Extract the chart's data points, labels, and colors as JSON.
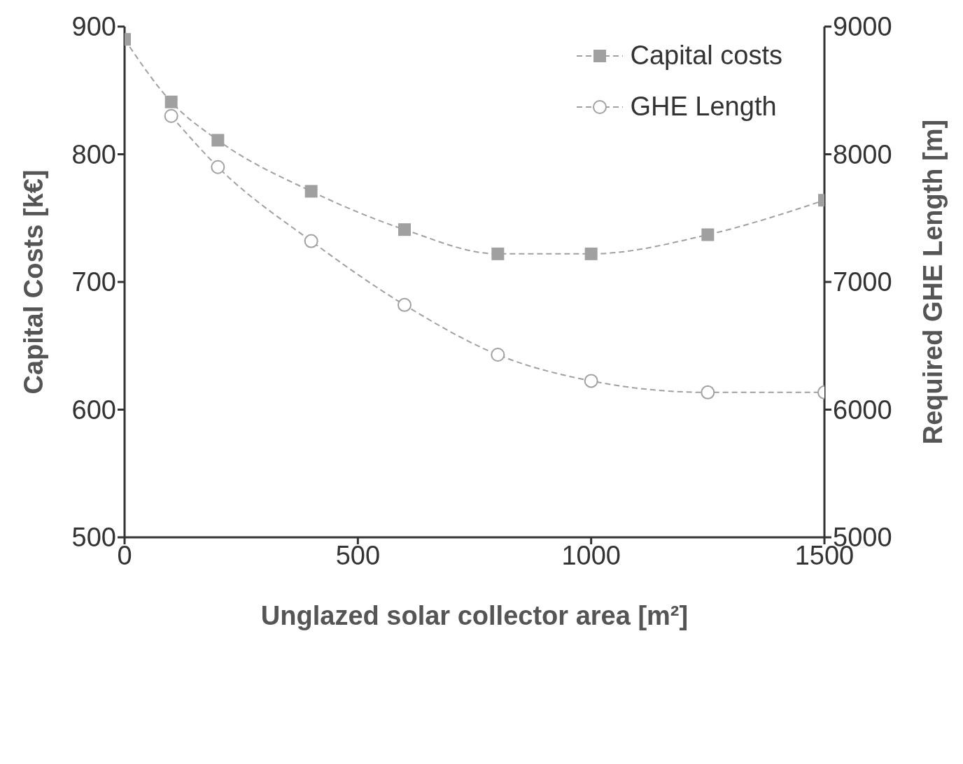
{
  "chart_data": {
    "type": "line",
    "xlabel": "Unglazed solar collector area [m²]",
    "ylabel": "Capital Costs [k€]",
    "y2label": "Required GHE Length [m]",
    "series": [
      {
        "name": "Capital costs",
        "color": "#a0a0a0",
        "marker": "square",
        "x": [
          0,
          100,
          200,
          400,
          600,
          800,
          1000,
          1250,
          1500
        ],
        "values": [
          890,
          841,
          811,
          771,
          741,
          722,
          722,
          737,
          764
        ]
      },
      {
        "name": "GHE Length",
        "color": "#a0a0a0",
        "marker": "circle",
        "axis": "y2",
        "x": [
          100,
          200,
          400,
          600,
          800,
          1000,
          1250,
          1500
        ],
        "values": [
          8300,
          7900,
          7320,
          6820,
          6430,
          6225,
          6135,
          6135
        ]
      }
    ],
    "xlim": [
      0,
      1500
    ],
    "xticks": [
      0,
      500,
      1000,
      1500
    ],
    "ylim": [
      500,
      900
    ],
    "yticks": [
      500,
      600,
      700,
      800,
      900
    ],
    "y2lim": [
      5000,
      9000
    ],
    "y2ticks": [
      5000,
      6000,
      7000,
      8000,
      9000
    ],
    "legend": "top right",
    "line_style": "dashed",
    "grid": false
  }
}
